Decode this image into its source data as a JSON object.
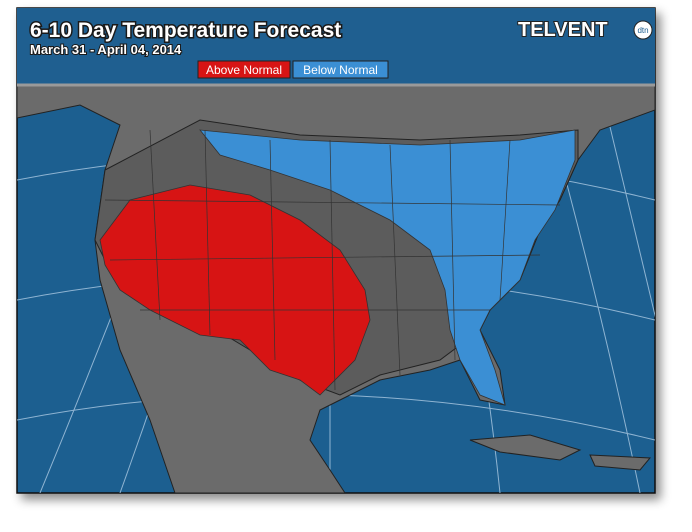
{
  "header": {
    "title": "6-10 Day Temperature Forecast",
    "subtitle": "March 31 - April 04, 2014"
  },
  "legend": [
    {
      "label": "Above Normal",
      "color": "#d71414"
    },
    {
      "label": "Below Normal",
      "color": "#3b8fd4"
    }
  ],
  "logo": {
    "text": "TELVENT",
    "badge": "dtn"
  }
}
